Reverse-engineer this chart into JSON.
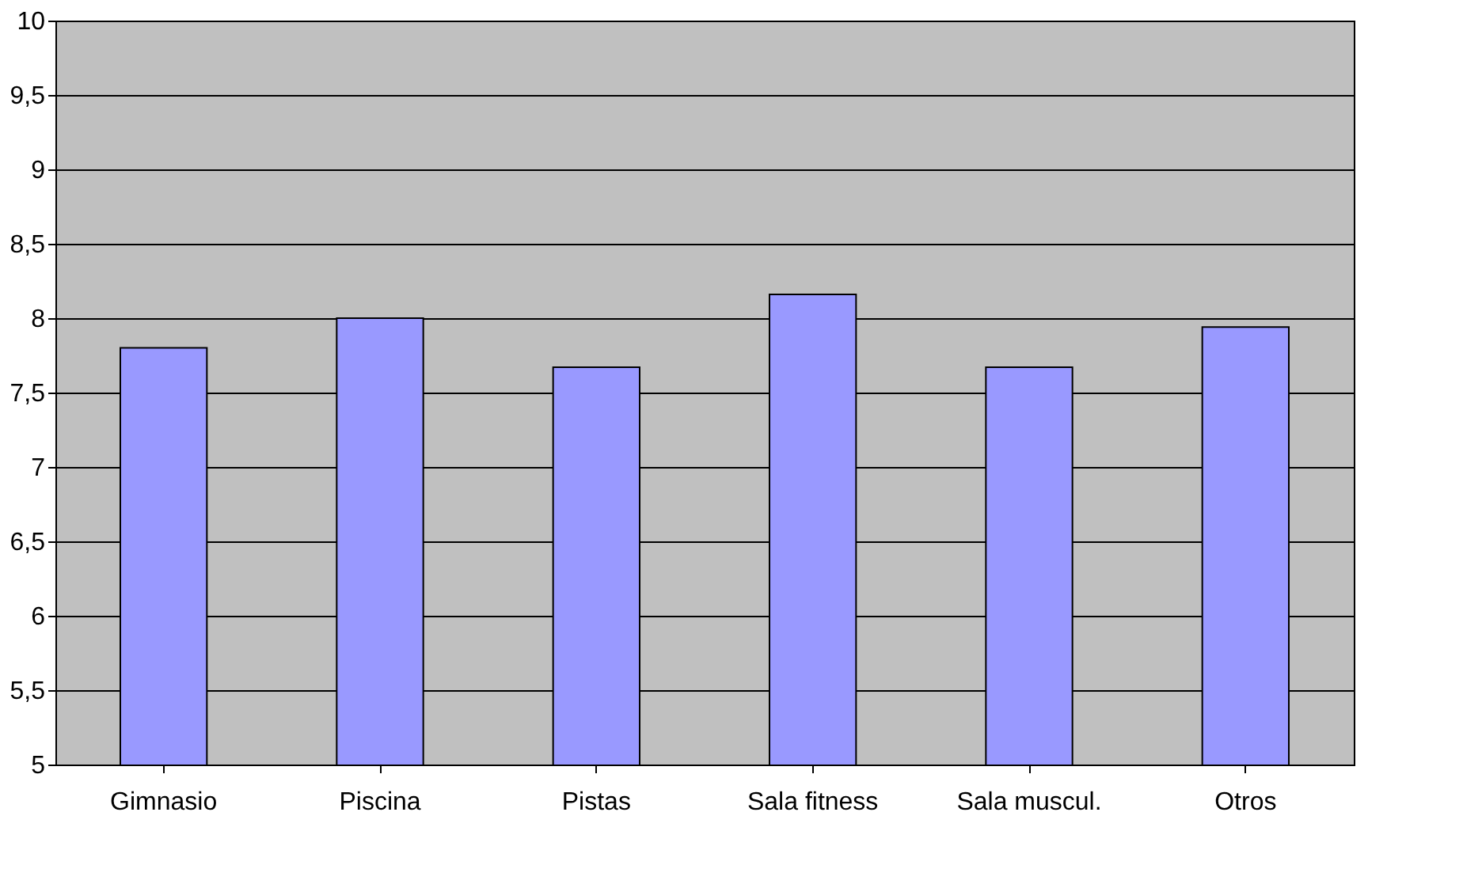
{
  "chart_data": {
    "type": "bar",
    "categories": [
      "Gimnasio",
      "Piscina",
      "Pistas",
      "Sala fitness",
      "Sala muscul.",
      "Otros"
    ],
    "values": [
      7.8,
      8.0,
      7.67,
      8.16,
      7.67,
      7.94
    ],
    "color": "#9999ff",
    "ylim": [
      5,
      10
    ],
    "yticks": [
      5,
      {
        "value": 5.5,
        "label": "5,5"
      },
      6,
      {
        "value": 6.5,
        "label": "6,5"
      },
      7,
      {
        "value": 7.5,
        "label": "7,5"
      },
      8,
      {
        "value": 8.5,
        "label": "8,5"
      },
      9,
      {
        "value": 9.5,
        "label": "9,5"
      },
      10
    ],
    "grid": "y"
  }
}
